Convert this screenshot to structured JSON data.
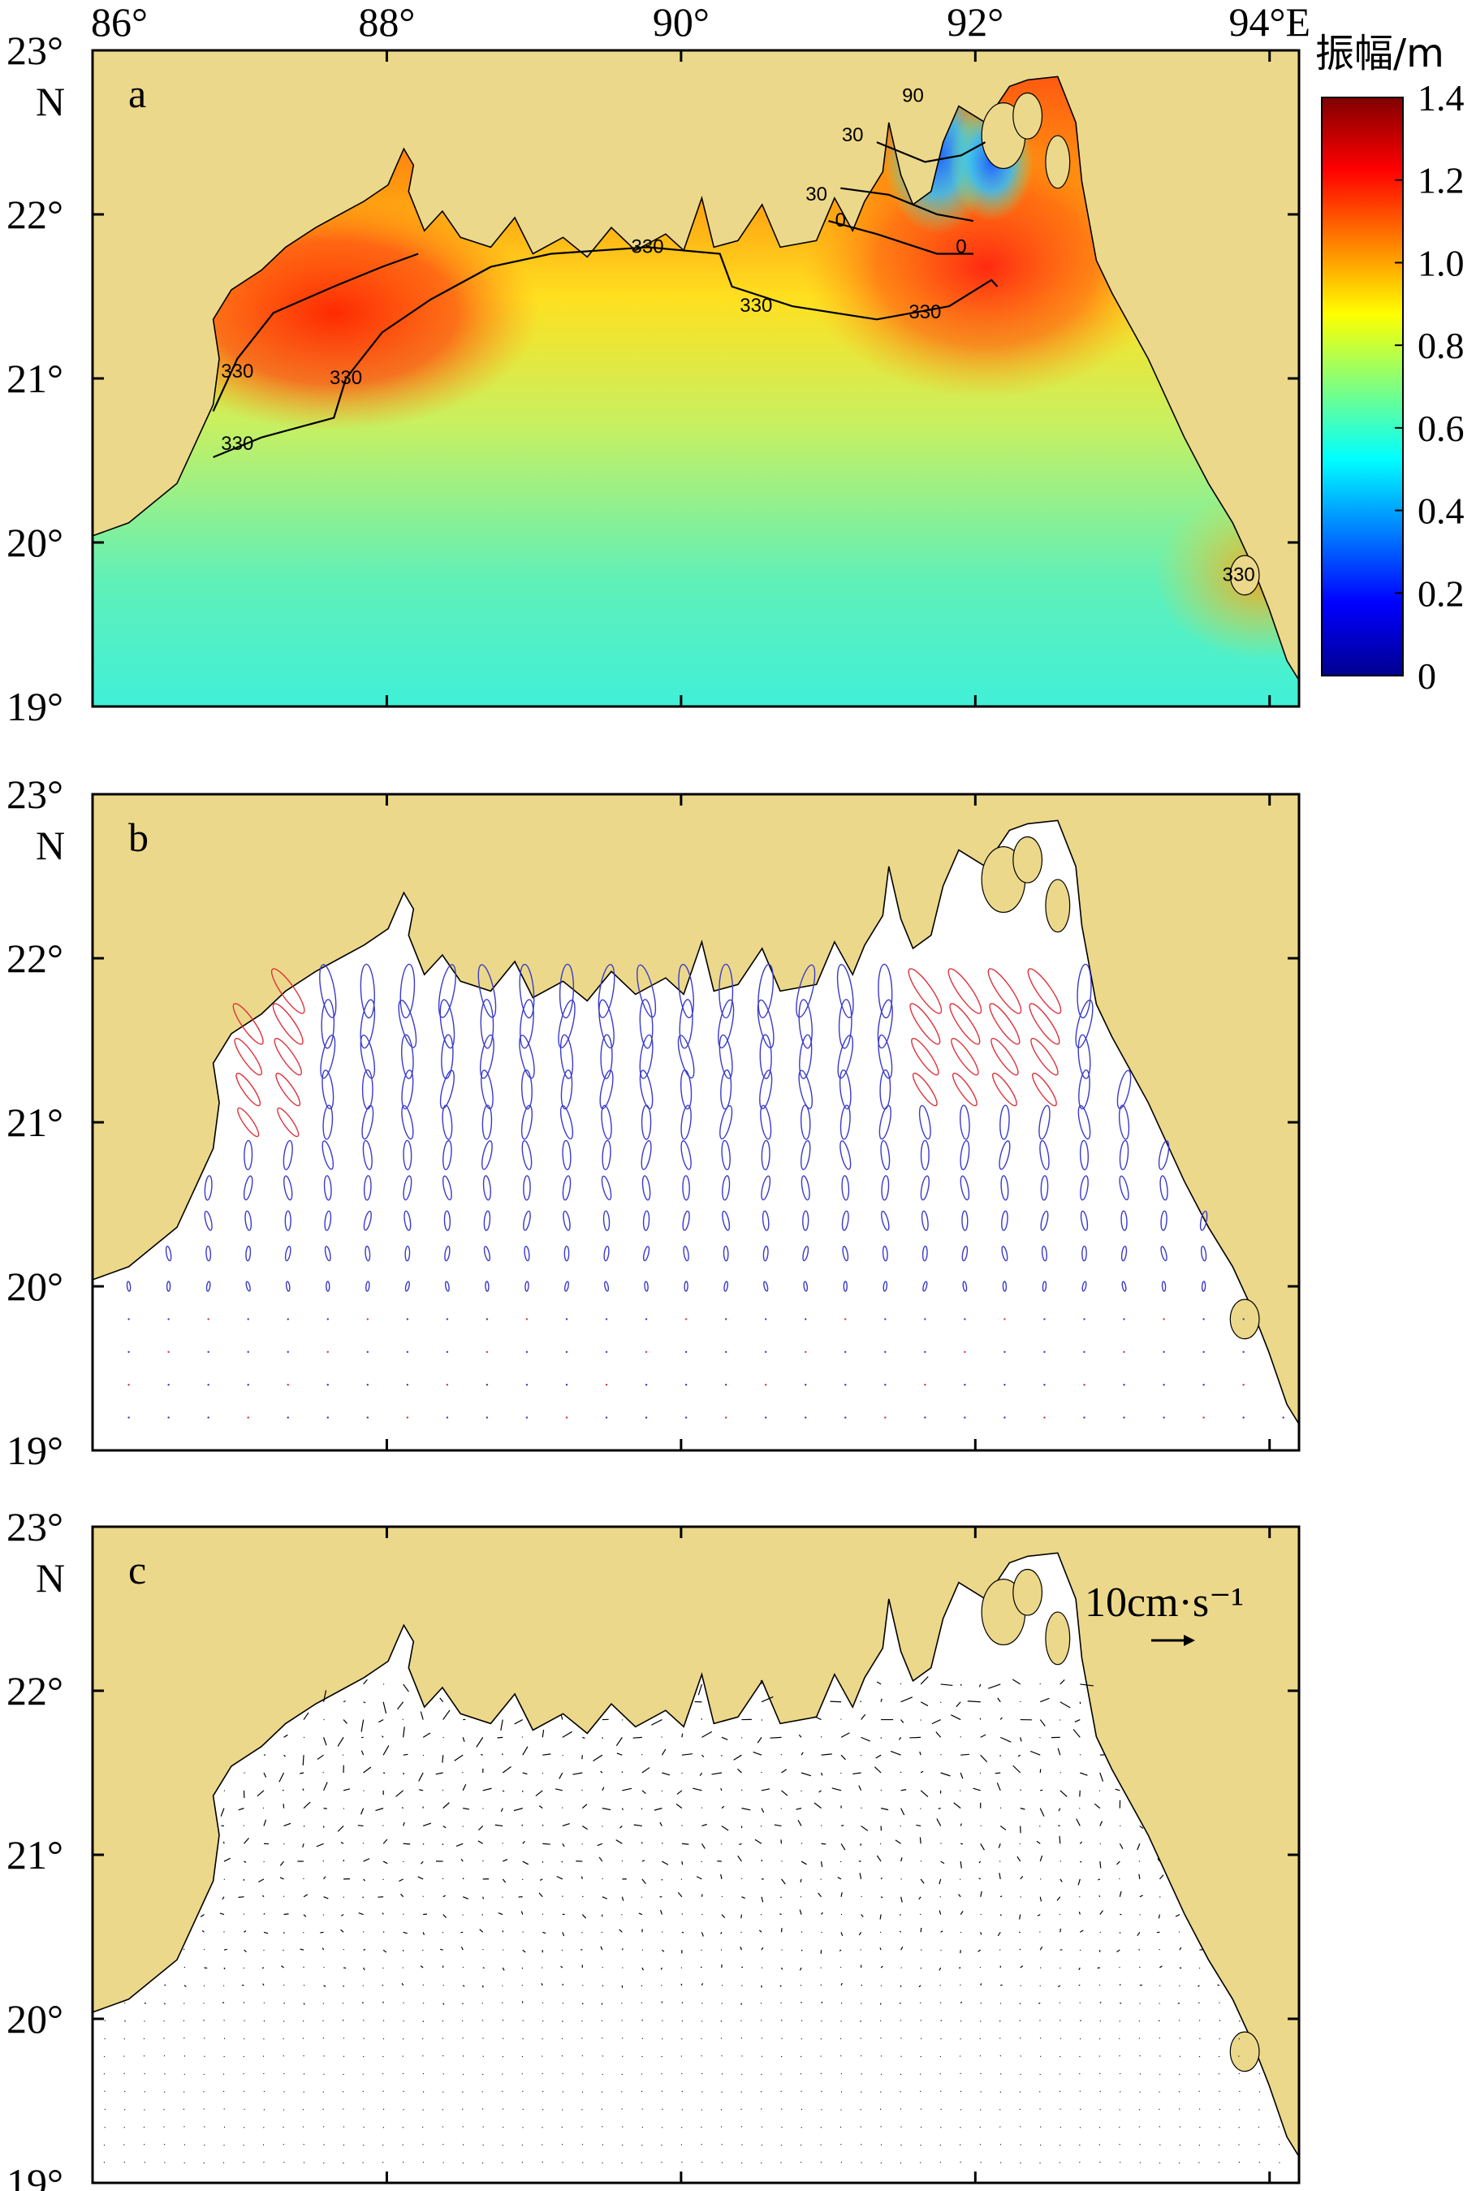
{
  "figure": {
    "x_tick_labels": [
      "86°",
      "88°",
      "90°",
      "92°",
      "94°E"
    ],
    "y_tick_labels": [
      "23°",
      "22°",
      "21°",
      "20°",
      "19°"
    ],
    "y_top_extra": "N"
  },
  "colors": {
    "land": "#ecd88a",
    "water": "#ffffff",
    "coast": "#000000",
    "ellipse_blue": "#3a3acc",
    "ellipse_red": "#e0303a",
    "arrow": "#000000"
  },
  "panels": [
    {
      "label": "a",
      "type": "amplitude_map"
    },
    {
      "label": "b",
      "type": "tidal_ellipses"
    },
    {
      "label": "c",
      "type": "residual_current"
    }
  ],
  "colorbar": {
    "title": "振幅/m",
    "ticks": [
      "1.4",
      "1.2",
      "1.0",
      "0.8",
      "0.6",
      "0.4",
      "0.2",
      "0"
    ],
    "range": [
      0,
      1.4
    ],
    "colormap": "jet"
  },
  "contour_labels": [
    "330",
    "330",
    "330",
    "330",
    "330",
    "330",
    "330",
    "0",
    "0",
    "30",
    "30",
    "90"
  ],
  "scale_arrow": {
    "label": "10cm·s⁻¹"
  },
  "chart_data": [
    {
      "type": "heatmap",
      "title": "",
      "panel": "a",
      "quantity": "振幅/m",
      "xlim": [
        86,
        94.2
      ],
      "ylim": [
        19,
        23
      ],
      "x_ticks": [
        "86°",
        "88°",
        "90°",
        "92°",
        "94°E"
      ],
      "y_ticks": [
        "23°",
        "22°",
        "21°",
        "20°",
        "19°"
      ],
      "color_range": [
        0,
        1.4
      ],
      "regions": [
        {
          "region": "western bight near 87°E, 21.4°N",
          "amplitude": 1.25
        },
        {
          "region": "eastern head near 91.8°E, 21.8°N",
          "amplitude": 1.2
        },
        {
          "region": "open shelf 20–21°N",
          "amplitude": 0.75
        },
        {
          "region": "southern open sea 19–20°N",
          "amplitude": 0.6
        },
        {
          "region": "estuary near 90.5°E, 22.6°N",
          "amplitude": 0.3
        }
      ],
      "contours": {
        "values": [
          0,
          30,
          90,
          330
        ],
        "label_values": [
          "330",
          "330",
          "330",
          "330",
          "330",
          "330",
          "330",
          "0",
          "0",
          "30",
          "30",
          "90"
        ]
      }
    },
    {
      "type": "scatter",
      "title": "",
      "panel": "b",
      "description_series": [
        "clockwise ellipses (red)",
        "counter-clockwise ellipses (blue)"
      ],
      "xlim": [
        86,
        94.2
      ],
      "ylim": [
        19,
        23
      ]
    },
    {
      "type": "scatter",
      "title": "",
      "panel": "c",
      "scale": "10cm·s⁻¹",
      "xlim": [
        86,
        94.2
      ],
      "ylim": [
        19,
        23
      ]
    }
  ]
}
